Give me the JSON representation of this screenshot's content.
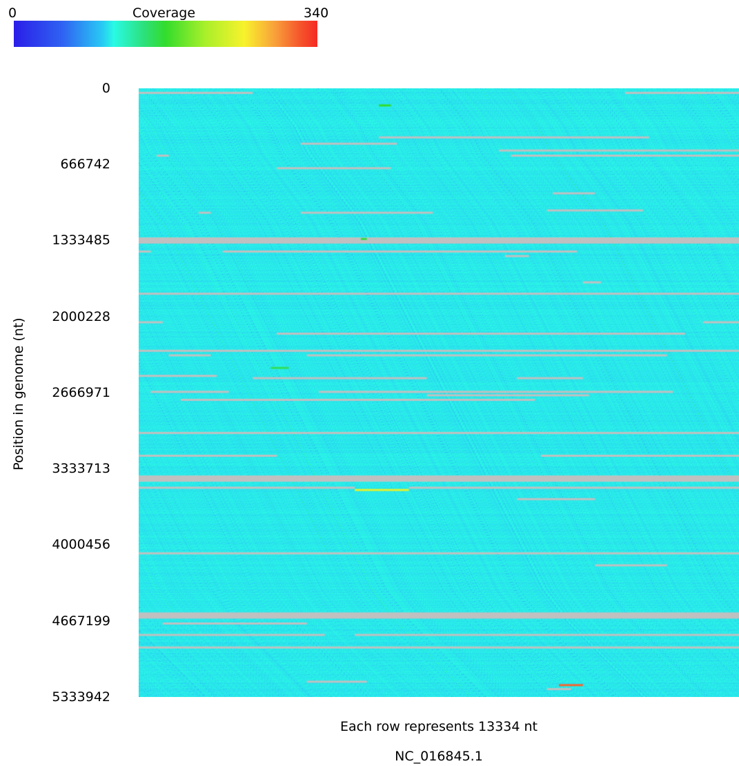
{
  "chart_data": {
    "type": "heatmap",
    "colorbar": {
      "title": "Coverage",
      "min": 0,
      "max": 340,
      "min_label": "0",
      "max_label": "340",
      "colors": [
        "#2a1ee8",
        "#2f62f2",
        "#28c8f4",
        "#29fae4",
        "#2ce07a",
        "#33dc2c",
        "#a8f02a",
        "#f8f22c",
        "#f8a03a",
        "#f5582c",
        "#f52a24"
      ]
    },
    "ylabel": "Position in genome (nt)",
    "y_ticks": [
      {
        "value": 0,
        "label": "0"
      },
      {
        "value": 666742,
        "label": "666742"
      },
      {
        "value": 1333485,
        "label": "1333485"
      },
      {
        "value": 2000228,
        "label": "2000228"
      },
      {
        "value": 2666971,
        "label": "2666971"
      },
      {
        "value": 3333713,
        "label": "3333713"
      },
      {
        "value": 4000456,
        "label": "4000456"
      },
      {
        "value": 4667199,
        "label": "4667199"
      },
      {
        "value": 5333942,
        "label": "5333942"
      }
    ],
    "ylim": [
      0,
      5333942
    ],
    "xlabel": "Each row represents 13334 nt",
    "caption": "NC_016845.1",
    "row_size_nt": 13334,
    "typical_coverage": 90,
    "zero_coverage_color": "#c0c0c0",
    "zero_coverage_gaps": [
      {
        "pos": 40000,
        "x0": 0.0,
        "x1": 0.19
      },
      {
        "pos": 40000,
        "x0": 0.81,
        "x1": 1.0
      },
      {
        "pos": 430000,
        "x0": 0.4,
        "x1": 0.85
      },
      {
        "pos": 485000,
        "x0": 0.27,
        "x1": 0.43
      },
      {
        "pos": 545000,
        "x0": 0.6,
        "x1": 1.0
      },
      {
        "pos": 590000,
        "x0": 0.03,
        "x1": 0.05
      },
      {
        "pos": 590000,
        "x0": 0.62,
        "x1": 1.0
      },
      {
        "pos": 700000,
        "x0": 0.23,
        "x1": 0.42
      },
      {
        "pos": 920000,
        "x0": 0.69,
        "x1": 0.76
      },
      {
        "pos": 1070000,
        "x0": 0.68,
        "x1": 0.84
      },
      {
        "pos": 1090000,
        "x0": 0.1,
        "x1": 0.12
      },
      {
        "pos": 1090000,
        "x0": 0.27,
        "x1": 0.49
      },
      {
        "pos": 1333485,
        "x0": 0.0,
        "x1": 1.0,
        "thick": true
      },
      {
        "pos": 1430000,
        "x0": 0.0,
        "x1": 0.02
      },
      {
        "pos": 1430000,
        "x0": 0.14,
        "x1": 0.73
      },
      {
        "pos": 1470000,
        "x0": 0.61,
        "x1": 0.65
      },
      {
        "pos": 1700000,
        "x0": 0.74,
        "x1": 0.77
      },
      {
        "pos": 1800000,
        "x0": 0.0,
        "x1": 1.0
      },
      {
        "pos": 2050000,
        "x0": 0.0,
        "x1": 0.04
      },
      {
        "pos": 2050000,
        "x0": 0.94,
        "x1": 1.0
      },
      {
        "pos": 2150000,
        "x0": 0.23,
        "x1": 0.91
      },
      {
        "pos": 2300000,
        "x0": 0.0,
        "x1": 1.0
      },
      {
        "pos": 2340000,
        "x0": 0.05,
        "x1": 0.12
      },
      {
        "pos": 2340000,
        "x0": 0.28,
        "x1": 0.88
      },
      {
        "pos": 2520000,
        "x0": 0.0,
        "x1": 0.13
      },
      {
        "pos": 2540000,
        "x0": 0.19,
        "x1": 0.48
      },
      {
        "pos": 2540000,
        "x0": 0.63,
        "x1": 0.74
      },
      {
        "pos": 2660000,
        "x0": 0.02,
        "x1": 0.15
      },
      {
        "pos": 2660000,
        "x0": 0.3,
        "x1": 0.89
      },
      {
        "pos": 2690000,
        "x0": 0.48,
        "x1": 0.75
      },
      {
        "pos": 2730000,
        "x0": 0.07,
        "x1": 0.66
      },
      {
        "pos": 3020000,
        "x0": 0.0,
        "x1": 1.0
      },
      {
        "pos": 3220000,
        "x0": 0.0,
        "x1": 0.23
      },
      {
        "pos": 3220000,
        "x0": 0.67,
        "x1": 1.0
      },
      {
        "pos": 3420000,
        "x0": 0.0,
        "x1": 1.0,
        "thick": true
      },
      {
        "pos": 3500000,
        "x0": 0.0,
        "x1": 0.36
      },
      {
        "pos": 3500000,
        "x0": 0.45,
        "x1": 1.0
      },
      {
        "pos": 3600000,
        "x0": 0.63,
        "x1": 0.76
      },
      {
        "pos": 4075000,
        "x0": 0.0,
        "x1": 1.0
      },
      {
        "pos": 4180000,
        "x0": 0.76,
        "x1": 0.88
      },
      {
        "pos": 4620000,
        "x0": 0.0,
        "x1": 1.0,
        "thick": true
      },
      {
        "pos": 4690000,
        "x0": 0.04,
        "x1": 0.28
      },
      {
        "pos": 4790000,
        "x0": 0.0,
        "x1": 0.31
      },
      {
        "pos": 4790000,
        "x0": 0.36,
        "x1": 1.0
      },
      {
        "pos": 4900000,
        "x0": 0.0,
        "x1": 1.0
      },
      {
        "pos": 5200000,
        "x0": 0.28,
        "x1": 0.38
      },
      {
        "pos": 5265000,
        "x0": 0.68,
        "x1": 0.72
      }
    ],
    "high_coverage_spots": [
      {
        "pos": 3520000,
        "x0": 0.36,
        "x1": 0.45,
        "value": 230
      },
      {
        "pos": 5230000,
        "x0": 0.7,
        "x1": 0.74,
        "value": 300
      },
      {
        "pos": 2450000,
        "x0": 0.22,
        "x1": 0.25,
        "value": 150
      },
      {
        "pos": 1320000,
        "x0": 0.37,
        "x1": 0.38,
        "value": 160
      },
      {
        "pos": 150000,
        "x0": 0.4,
        "x1": 0.42,
        "value": 170
      }
    ]
  }
}
